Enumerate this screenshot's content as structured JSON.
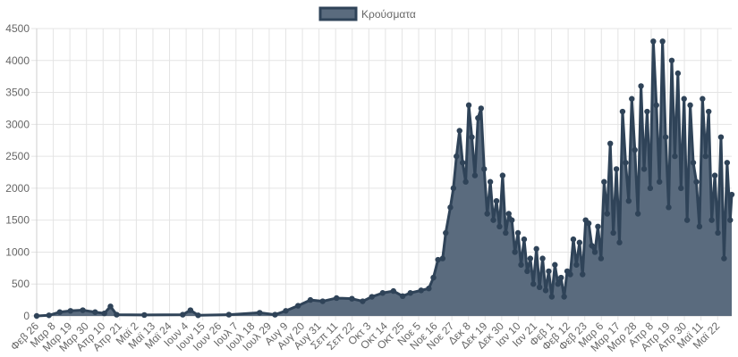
{
  "chart_data": {
    "type": "area",
    "title": "",
    "xlabel": "",
    "ylabel": "",
    "ylim": [
      0,
      4500
    ],
    "y_ticks": [
      0,
      500,
      1000,
      1500,
      2000,
      2500,
      3000,
      3500,
      4000,
      4500
    ],
    "grid": true,
    "legend_position": "top-center",
    "colors": {
      "fill": "#5a6b7e",
      "line": "#2f4358",
      "point": "#2f4358"
    },
    "x_ticks": [
      "Φεβ 26",
      "Μαρ 8",
      "Μαρ 19",
      "Μαρ 30",
      "Απρ 10",
      "Απρ 21",
      "Μαϊ 2",
      "Μαϊ 13",
      "Μαϊ 24",
      "Ιουν 4",
      "Ιουν 15",
      "Ιουν 26",
      "Ιουλ 7",
      "Ιουλ 18",
      "Ιουλ 29",
      "Αυγ 9",
      "Αυγ 20",
      "Αυγ 31",
      "Σεπ 11",
      "Σεπ 22",
      "Οκτ 3",
      "Οκτ 14",
      "Οκτ 25",
      "Νοε 5",
      "Νοε 16",
      "Νοε 27",
      "Δεκ 8",
      "Δεκ 19",
      "Δεκ 30",
      "Ιαν 10",
      "Ιαν 21",
      "Φεβ 1",
      "Φεβ 12",
      "Φεβ 23",
      "Μαρ 6",
      "Μαρ 17",
      "Μαρ 28",
      "Απρ 8",
      "Απρ 19",
      "Απρ 30",
      "Μαϊ 11",
      "Μαϊ 22"
    ],
    "series": [
      {
        "name": "Κρούσματα",
        "keypoints": [
          [
            0,
            0
          ],
          [
            8,
            10
          ],
          [
            15,
            60
          ],
          [
            22,
            80
          ],
          [
            30,
            90
          ],
          [
            38,
            60
          ],
          [
            44,
            40
          ],
          [
            48,
            150
          ],
          [
            52,
            20
          ],
          [
            70,
            15
          ],
          [
            95,
            20
          ],
          [
            100,
            90
          ],
          [
            105,
            10
          ],
          [
            125,
            20
          ],
          [
            145,
            50
          ],
          [
            155,
            20
          ],
          [
            162,
            80
          ],
          [
            170,
            160
          ],
          [
            178,
            250
          ],
          [
            186,
            230
          ],
          [
            195,
            280
          ],
          [
            205,
            270
          ],
          [
            212,
            230
          ],
          [
            218,
            300
          ],
          [
            225,
            360
          ],
          [
            232,
            390
          ],
          [
            238,
            310
          ],
          [
            243,
            360
          ],
          [
            250,
            400
          ],
          [
            255,
            430
          ],
          [
            258,
            600
          ],
          [
            261,
            880
          ],
          [
            264,
            900
          ],
          [
            266,
            1300
          ],
          [
            269,
            1700
          ],
          [
            271,
            2000
          ],
          [
            273,
            2500
          ],
          [
            275,
            2900
          ],
          [
            277,
            2400
          ],
          [
            279,
            2100
          ],
          [
            281,
            3300
          ],
          [
            283,
            2800
          ],
          [
            285,
            2200
          ],
          [
            287,
            3100
          ],
          [
            289,
            3250
          ],
          [
            291,
            2300
          ],
          [
            293,
            1600
          ],
          [
            295,
            2100
          ],
          [
            297,
            1500
          ],
          [
            299,
            1800
          ],
          [
            301,
            1400
          ],
          [
            303,
            2200
          ],
          [
            305,
            1300
          ],
          [
            307,
            1600
          ],
          [
            309,
            1500
          ],
          [
            311,
            1000
          ],
          [
            313,
            1300
          ],
          [
            315,
            800
          ],
          [
            317,
            1200
          ],
          [
            319,
            700
          ],
          [
            321,
            900
          ],
          [
            323,
            500
          ],
          [
            325,
            1050
          ],
          [
            327,
            450
          ],
          [
            329,
            900
          ],
          [
            331,
            400
          ],
          [
            333,
            700
          ],
          [
            335,
            300
          ],
          [
            337,
            800
          ],
          [
            339,
            500
          ],
          [
            341,
            600
          ],
          [
            343,
            300
          ],
          [
            345,
            700
          ],
          [
            347,
            650
          ],
          [
            349,
            1200
          ],
          [
            351,
            800
          ],
          [
            353,
            1150
          ],
          [
            355,
            650
          ],
          [
            357,
            1500
          ],
          [
            359,
            1450
          ],
          [
            361,
            1100
          ],
          [
            363,
            1000
          ],
          [
            365,
            1400
          ],
          [
            367,
            900
          ],
          [
            369,
            2100
          ],
          [
            371,
            1600
          ],
          [
            373,
            2700
          ],
          [
            375,
            1300
          ],
          [
            377,
            2300
          ],
          [
            379,
            1150
          ],
          [
            381,
            3200
          ],
          [
            383,
            2400
          ],
          [
            385,
            1800
          ],
          [
            387,
            3400
          ],
          [
            389,
            2600
          ],
          [
            391,
            1600
          ],
          [
            393,
            3600
          ],
          [
            395,
            2300
          ],
          [
            397,
            3200
          ],
          [
            399,
            2000
          ],
          [
            401,
            4300
          ],
          [
            403,
            3300
          ],
          [
            405,
            2100
          ],
          [
            407,
            4300
          ],
          [
            409,
            2800
          ],
          [
            411,
            1700
          ],
          [
            413,
            4000
          ],
          [
            415,
            2500
          ],
          [
            417,
            3800
          ],
          [
            419,
            2000
          ],
          [
            421,
            3400
          ],
          [
            423,
            1500
          ],
          [
            425,
            3300
          ],
          [
            427,
            2400
          ],
          [
            429,
            2100
          ],
          [
            431,
            1400
          ],
          [
            433,
            3400
          ],
          [
            435,
            2500
          ],
          [
            437,
            3200
          ],
          [
            439,
            1500
          ],
          [
            441,
            2200
          ],
          [
            443,
            1300
          ],
          [
            445,
            2800
          ],
          [
            447,
            900
          ],
          [
            449,
            2400
          ],
          [
            451,
            1500
          ],
          [
            452,
            1900
          ]
        ]
      }
    ]
  }
}
